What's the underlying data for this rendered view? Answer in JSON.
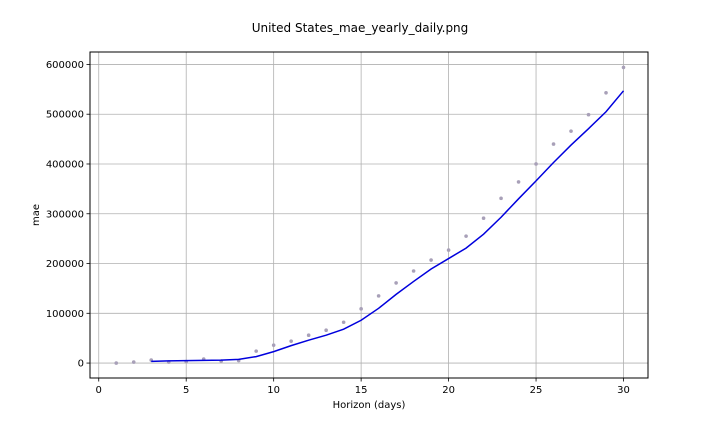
{
  "chart_data": {
    "type": "line",
    "title": "United States_mae_yearly_daily.png",
    "xlabel": "Horizon (days)",
    "ylabel": "mae",
    "xlim": [
      -0.5,
      31.4
    ],
    "ylim": [
      -30000,
      625000
    ],
    "xticks": [
      0,
      5,
      10,
      15,
      20,
      25,
      30
    ],
    "yticks": [
      0,
      100000,
      200000,
      300000,
      400000,
      500000,
      600000
    ],
    "grid": true,
    "series": [
      {
        "kind": "scatter",
        "color": "#a8a0b8",
        "x": [
          1,
          2,
          3,
          4,
          5,
          6,
          7,
          8,
          9,
          10,
          11,
          12,
          13,
          14,
          15,
          16,
          17,
          18,
          19,
          20,
          21,
          22,
          23,
          24,
          25,
          26,
          27,
          28,
          29,
          30
        ],
        "y": [
          0,
          2000,
          6000,
          2000,
          3000,
          8000,
          4000,
          5000,
          24000,
          36000,
          44000,
          56000,
          66000,
          82000,
          109000,
          135000,
          161000,
          185000,
          207000,
          227000,
          255000,
          291000,
          331000,
          364000,
          400000,
          440000,
          466000,
          499000,
          543000,
          594000
        ]
      },
      {
        "kind": "line",
        "color": "#0000dd",
        "x": [
          3,
          4,
          5,
          6,
          7,
          8,
          9,
          10,
          11,
          12,
          13,
          14,
          15,
          16,
          17,
          18,
          19,
          20,
          21,
          22,
          23,
          24,
          25,
          26,
          27,
          28,
          29,
          30
        ],
        "y": [
          3500,
          4500,
          5000,
          5500,
          6000,
          7500,
          13000,
          23000,
          35000,
          46000,
          56000,
          68000,
          86000,
          110000,
          138000,
          164000,
          189000,
          210000,
          231000,
          259000,
          293000,
          330000,
          366000,
          403000,
          438000,
          471000,
          505000,
          547000
        ]
      }
    ]
  }
}
